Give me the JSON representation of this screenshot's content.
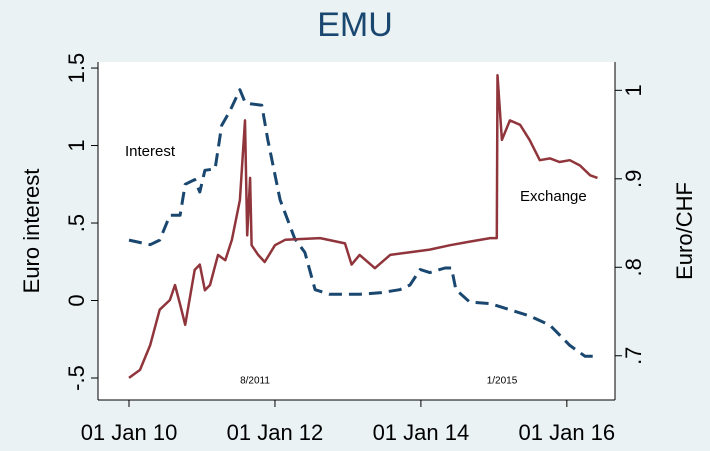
{
  "chart_data": {
    "type": "line",
    "title": "EMU",
    "ylabel": "Euro interest",
    "y2label": "Euro/CHF",
    "annotations": [
      "Interest",
      "Exchange",
      "8/2011",
      "1/2015"
    ],
    "xlim": [
      2009.575,
      2016.66
    ],
    "xticks": [
      {
        "value": 2010,
        "label": "01 Jan 10"
      },
      {
        "value": 2012,
        "label": "01 Jan 12"
      },
      {
        "value": 2014,
        "label": "01 Jan 14"
      },
      {
        "value": 2016,
        "label": "01 Jan 16"
      }
    ],
    "ylim": [
      -0.642,
      1.539
    ],
    "yticks": [
      {
        "value": -0.5,
        "label": "-.5"
      },
      0,
      {
        "value": 0.5,
        "label": ".5"
      },
      1,
      1.5
    ],
    "y2lim": [
      0.65,
      1.032
    ],
    "y2ticks": [
      {
        "value": 0.7,
        "label": ".7"
      },
      {
        "value": 0.8,
        "label": ".8"
      },
      {
        "value": 0.9,
        "label": ".9"
      },
      1
    ],
    "grid": false,
    "series": [
      {
        "name": "Interest",
        "color": "#1a476f",
        "dashed": true,
        "x": [
          2010.0,
          2010.29,
          2010.42,
          2010.56,
          2010.7,
          2010.77,
          2010.9,
          2010.97,
          2011.04,
          2011.18,
          2011.27,
          2011.38,
          2011.52,
          2011.59,
          2011.66,
          2011.82,
          2011.9,
          2012.07,
          2012.27,
          2012.41,
          2012.55,
          2012.75,
          2013.16,
          2013.44,
          2013.71,
          2013.85,
          2013.99,
          2014.12,
          2014.33,
          2014.42,
          2014.48,
          2014.67,
          2014.95,
          2015.22,
          2015.49,
          2015.77,
          2016.04,
          2016.25,
          2016.42
        ],
        "values": [
          0.39,
          0.36,
          0.39,
          0.55,
          0.55,
          0.75,
          0.78,
          0.7,
          0.84,
          0.85,
          1.13,
          1.22,
          1.36,
          1.28,
          1.27,
          1.26,
          1.04,
          0.65,
          0.4,
          0.31,
          0.07,
          0.04,
          0.04,
          0.05,
          0.07,
          0.1,
          0.2,
          0.18,
          0.21,
          0.21,
          0.07,
          -0.01,
          -0.02,
          -0.06,
          -0.1,
          -0.16,
          -0.29,
          -0.36,
          -0.36
        ]
      },
      {
        "name": "Exchange",
        "color": "#90353b",
        "axis": "y2",
        "x": [
          2010.0,
          2010.15,
          2010.29,
          2010.42,
          2010.56,
          2010.63,
          2010.7,
          2010.77,
          2010.9,
          2010.97,
          2011.04,
          2011.11,
          2011.22,
          2011.32,
          2011.41,
          2011.52,
          2011.59,
          2011.62,
          2011.66,
          2011.68,
          2011.77,
          2011.86,
          2012.0,
          2012.14,
          2012.62,
          2012.96,
          2013.05,
          2013.16,
          2013.37,
          2013.58,
          2013.85,
          2014.12,
          2014.4,
          2014.67,
          2014.95,
          2015.04,
          2015.05,
          2015.11,
          2015.22,
          2015.36,
          2015.49,
          2015.63,
          2015.77,
          2015.9,
          2016.04,
          2016.18,
          2016.32,
          2016.42
        ],
        "values": [
          0.675,
          0.684,
          0.712,
          0.752,
          0.763,
          0.78,
          0.758,
          0.735,
          0.797,
          0.803,
          0.774,
          0.78,
          0.814,
          0.808,
          0.831,
          0.876,
          0.966,
          0.836,
          0.901,
          0.825,
          0.814,
          0.806,
          0.825,
          0.831,
          0.833,
          0.827,
          0.803,
          0.814,
          0.799,
          0.814,
          0.817,
          0.82,
          0.825,
          0.829,
          0.833,
          0.833,
          1.017,
          0.944,
          0.966,
          0.961,
          0.944,
          0.921,
          0.923,
          0.919,
          0.921,
          0.915,
          0.904,
          0.901
        ]
      }
    ]
  }
}
